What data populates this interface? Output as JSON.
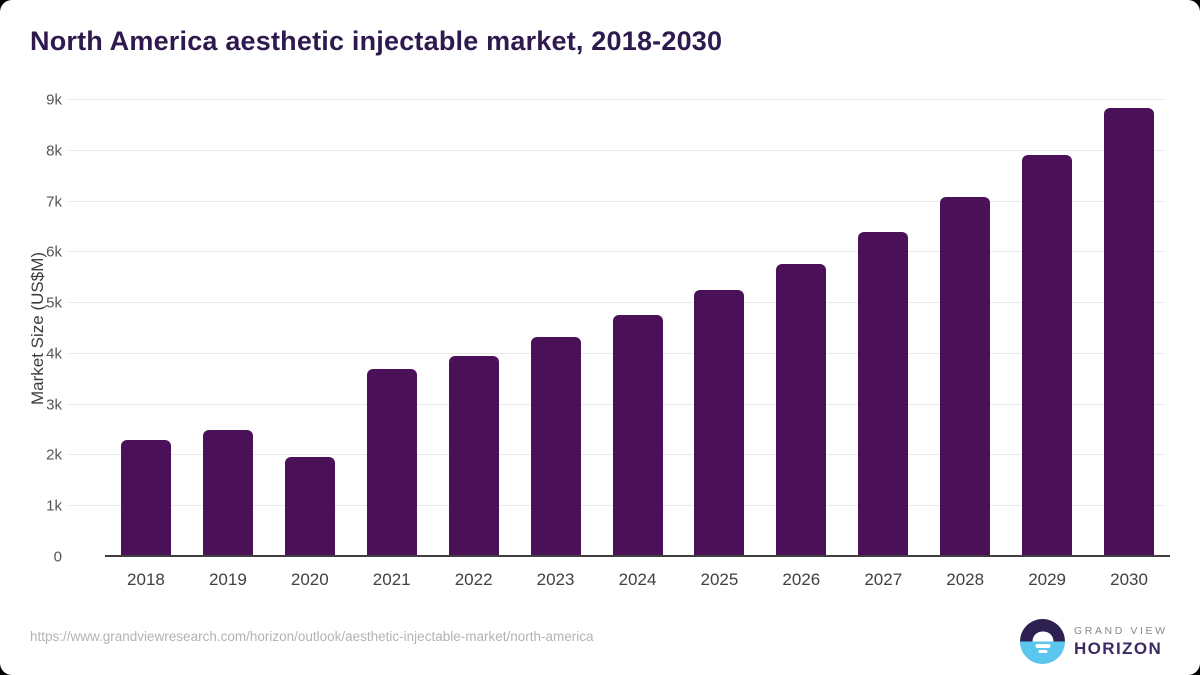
{
  "title": "North America aesthetic injectable market, 2018-2030",
  "chart_data": {
    "type": "bar",
    "title": "North America aesthetic injectable market, 2018-2030",
    "categories": [
      "2018",
      "2019",
      "2020",
      "2021",
      "2022",
      "2023",
      "2024",
      "2025",
      "2026",
      "2027",
      "2028",
      "2029",
      "2030"
    ],
    "values": [
      2270,
      2460,
      1930,
      3670,
      3920,
      4300,
      4730,
      5210,
      5740,
      6370,
      7060,
      7870,
      8800
    ],
    "xlabel": "",
    "ylabel": "Market Size (US$M)",
    "ylim": [
      0,
      9000
    ],
    "ytick_labels": [
      "0",
      "1k",
      "2k",
      "3k",
      "4k",
      "5k",
      "6k",
      "7k",
      "8k",
      "9k"
    ],
    "grid": true,
    "legend": "none"
  },
  "footer": {
    "source_url": "https://www.grandviewresearch.com/horizon/outlook/aesthetic-injectable-market/north-america",
    "logo": {
      "line1": "GRAND VIEW",
      "line2": "HORIZON"
    }
  },
  "colors": {
    "title": "#2e1a4e",
    "bar": "#4a1158",
    "grid": "#e9e9e9",
    "axis": "#3f3f3f",
    "tick": "#555555",
    "url": "#b3b3b3",
    "logo_purple": "#2e2152",
    "logo_blue": "#5bc6ee",
    "logo_text": "#3b2a63",
    "logo_gray": "#8a8a8a"
  }
}
